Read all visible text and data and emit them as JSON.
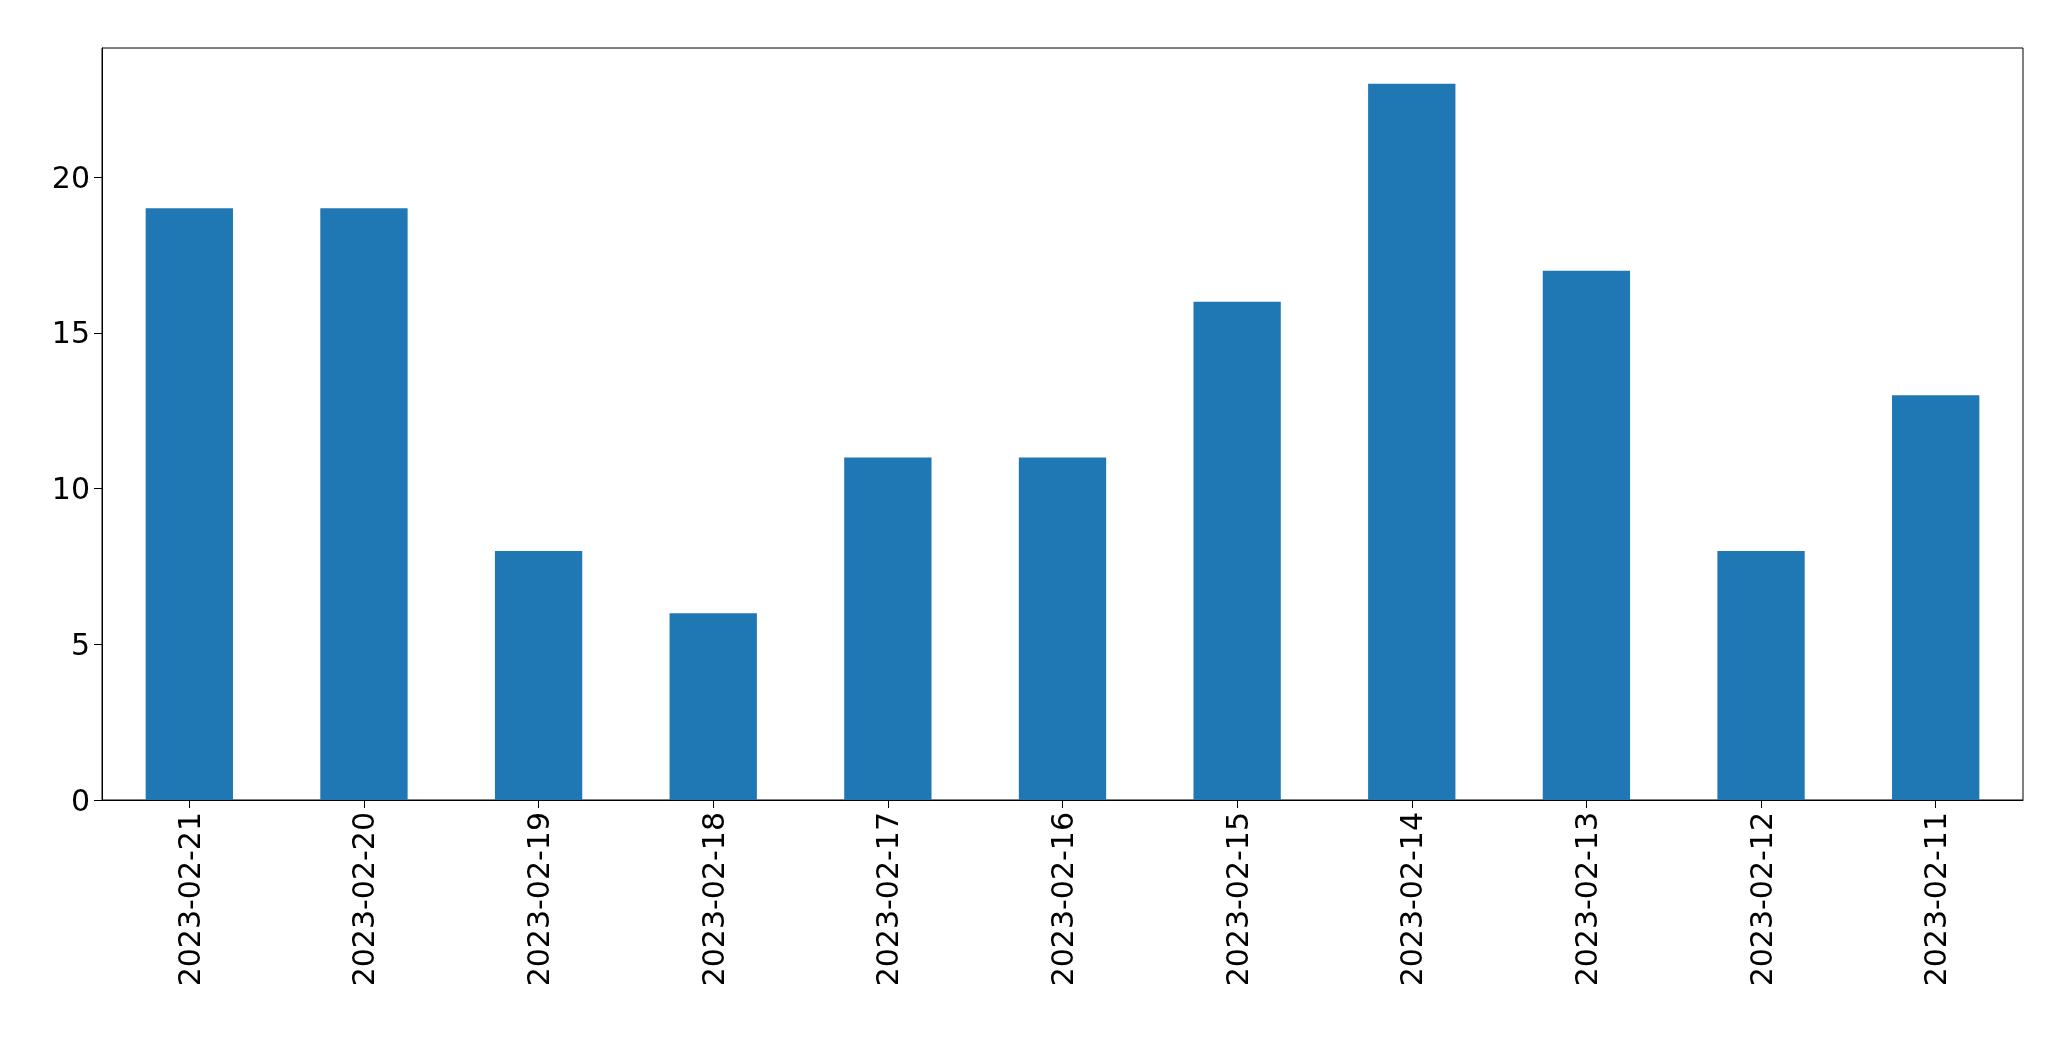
{
  "chart_data": {
    "type": "bar",
    "categories": [
      "2023-02-21",
      "2023-02-20",
      "2023-02-19",
      "2023-02-18",
      "2023-02-17",
      "2023-02-16",
      "2023-02-15",
      "2023-02-14",
      "2023-02-13",
      "2023-02-12",
      "2023-02-11"
    ],
    "values": [
      19,
      19,
      8,
      6,
      11,
      11,
      16,
      23,
      17,
      8,
      13
    ],
    "color": "#1f77b4",
    "ylim": [
      0,
      24.15
    ],
    "yticks": [
      0,
      5,
      10,
      15,
      20
    ]
  }
}
